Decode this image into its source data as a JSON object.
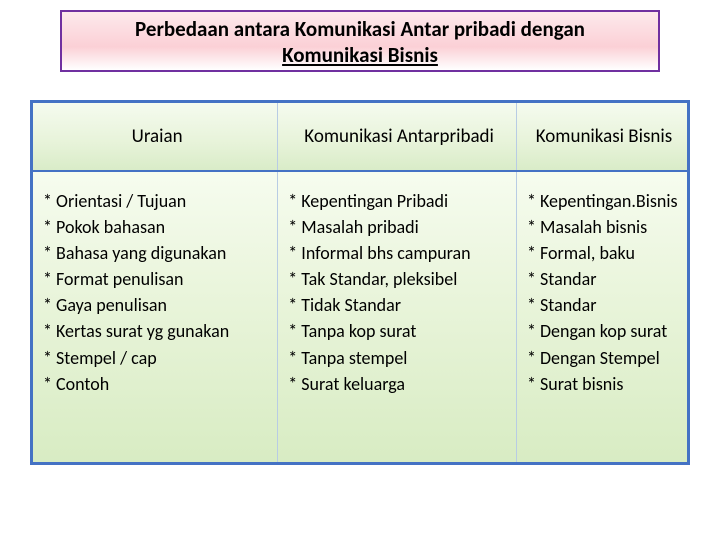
{
  "title": {
    "line1": "Perbedaan antara Komunikasi Antar pribadi dengan",
    "line2": "Komunikasi Bisnis"
  },
  "headers": {
    "c1": "Uraian",
    "c2": "Komunikasi  Antarpribadi",
    "c3": "Komunikasi Bisnis"
  },
  "rows": {
    "uraian": [
      "* Orientasi / Tujuan",
      "* Pokok bahasan",
      "* Bahasa yang digunakan",
      "* Format  penulisan",
      "* Gaya  penulisan",
      "* Kertas surat yg gunakan",
      "* Stempel / cap",
      "* Contoh"
    ],
    "antarpribadi": [
      "* Kepentingan Pribadi",
      "* Masalah pribadi",
      "* Informal bhs campuran",
      "* Tak Standar, pleksibel",
      "* Tidak Standar",
      "* Tanpa kop surat",
      "* Tanpa stempel",
      "* Surat keluarga"
    ],
    "bisnis": [
      "* Kepentingan.Bisnis",
      "* Masalah bisnis",
      "* Formal, baku",
      "* Standar",
      "* Standar",
      "* Dengan kop surat",
      "*  Dengan Stempel",
      "*  Surat bisnis"
    ]
  },
  "styles": {
    "title_border_color": "#7030a0",
    "title_bg_top": "#fde9ec",
    "title_bg_mid": "#fbd0d6",
    "table_border_color": "#4472c4",
    "cell_bg_top": "#f6fcef",
    "cell_bg_mid": "#eaf5dc",
    "cell_bg_bottom": "#d8ecc3",
    "inner_border": "#b8cce4",
    "text_color": "#000000",
    "title_fontsize": 21,
    "header_fontsize": 19,
    "body_fontsize": 18
  }
}
